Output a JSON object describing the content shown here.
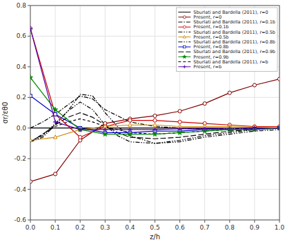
{
  "chart_data": {
    "type": "line",
    "x_label": "z/h",
    "y_label": "σr/εθ0",
    "xlim": [
      0,
      1.0
    ],
    "ylim": [
      -0.6,
      0.8
    ],
    "xticks": [
      {
        "value": 0,
        "label": "0.0"
      },
      0.1,
      0.2,
      0.3,
      0.4,
      0.5,
      0.6,
      0.7,
      0.8,
      0.9,
      {
        "value": 1.0,
        "label": "1.0"
      }
    ],
    "yticks": [
      -0.6,
      -0.4,
      -0.2,
      {
        "value": 0.0,
        "label": "0.0"
      },
      0.2,
      0.4,
      0.6,
      0.8
    ],
    "grid": true,
    "legend": "upper right",
    "series": [
      {
        "name": "Sburlati and Bardella (2011), r=0",
        "color": "#000000",
        "line_style": "solid",
        "x": [
          0.0,
          0.05,
          0.1,
          0.15,
          0.2,
          0.25,
          0.3,
          0.4,
          0.5,
          0.6,
          0.7,
          0.8,
          0.9,
          1.0
        ],
        "values": [
          0.0,
          0.0,
          0.0,
          0.0,
          0.0,
          0.0,
          0.0,
          0.0,
          0.0,
          0.0,
          0.0,
          0.0,
          0.0,
          0.0
        ]
      },
      {
        "name": "Present, r=0",
        "color": "#800000",
        "line_style": "solid",
        "marker": "circle",
        "x": [
          0.0,
          0.1,
          0.2,
          0.3,
          0.4,
          0.5,
          0.6,
          0.7,
          0.8,
          0.9,
          1.0
        ],
        "values": [
          -0.35,
          -0.3,
          -0.08,
          0.03,
          0.06,
          0.08,
          0.11,
          0.16,
          0.23,
          0.28,
          0.32
        ]
      },
      {
        "name": "Sburlati and Bardella (2011), r=0.1b",
        "color": "#000000",
        "line_style": "dashdot",
        "x": [
          0.0,
          0.05,
          0.1,
          0.15,
          0.2,
          0.25,
          0.3,
          0.4,
          0.5,
          0.6,
          0.7,
          0.8,
          0.9,
          1.0
        ],
        "values": [
          0.0,
          0.04,
          0.09,
          0.15,
          0.21,
          0.19,
          0.12,
          0.04,
          0.01,
          0.0,
          -0.005,
          -0.005,
          -0.002,
          0.0
        ]
      },
      {
        "name": "Present, r=0.1b",
        "color": "#cc0000",
        "line_style": "solid",
        "marker": "circle",
        "x": [
          0.0,
          0.1,
          0.2,
          0.3,
          0.4,
          0.5,
          0.6,
          0.7,
          0.8,
          0.9,
          1.0
        ],
        "values": [
          0.65,
          0.09,
          -0.06,
          0.01,
          0.05,
          0.05,
          0.04,
          0.03,
          0.02,
          0.01,
          0.01
        ]
      },
      {
        "name": "Sburlati and Bardella (2011), r=0.5b",
        "color": "#000000",
        "line_style": "dashdotdot",
        "x": [
          0.0,
          0.05,
          0.1,
          0.15,
          0.2,
          0.25,
          0.3,
          0.35,
          0.4,
          0.5,
          0.6,
          0.7,
          0.8,
          0.9,
          1.0
        ],
        "values": [
          -0.09,
          -0.06,
          0.02,
          0.11,
          0.22,
          0.21,
          0.1,
          0.01,
          -0.05,
          -0.1,
          -0.09,
          -0.06,
          -0.04,
          -0.02,
          -0.01
        ]
      },
      {
        "name": "Present, r=0.5b",
        "color": "#cc8800",
        "line_style": "solid",
        "marker": "triangle",
        "x": [
          0.0,
          0.1,
          0.2,
          0.3,
          0.4,
          0.5,
          0.6,
          0.7,
          0.8,
          0.9,
          1.0
        ],
        "values": [
          -0.08,
          -0.06,
          -0.01,
          0.01,
          0.02,
          0.02,
          0.01,
          0.01,
          0.01,
          0.005,
          0.0
        ]
      },
      {
        "name": "Sburlati and Bardella (2011), r=0.8b",
        "color": "#000000",
        "line_style": "dashdotdot",
        "x": [
          0.0,
          0.05,
          0.1,
          0.15,
          0.2,
          0.25,
          0.3,
          0.35,
          0.4,
          0.5,
          0.6,
          0.7,
          0.8,
          0.9,
          1.0
        ],
        "values": [
          -0.09,
          -0.05,
          0.03,
          0.11,
          0.17,
          0.12,
          0.02,
          -0.05,
          -0.09,
          -0.1,
          -0.08,
          -0.05,
          -0.03,
          -0.01,
          0.0
        ]
      },
      {
        "name": "Present, r=0.8b",
        "color": "#0000cc",
        "line_style": "solid",
        "marker": "square",
        "x": [
          0.0,
          0.1,
          0.2,
          0.3,
          0.4,
          0.5,
          0.6,
          0.7,
          0.8,
          0.9,
          1.0
        ],
        "values": [
          0.21,
          0.09,
          0.0,
          -0.03,
          -0.03,
          -0.02,
          -0.02,
          -0.01,
          -0.01,
          -0.005,
          0.0
        ]
      },
      {
        "name": "Sburlati and Bardella (2011), r=0.9b",
        "color": "#000000",
        "line_style": "longdash",
        "x": [
          0.0,
          0.05,
          0.1,
          0.15,
          0.2,
          0.25,
          0.3,
          0.35,
          0.4,
          0.5,
          0.6,
          0.7,
          0.8,
          0.9,
          1.0
        ],
        "values": [
          -0.09,
          -0.04,
          0.02,
          0.07,
          0.1,
          0.07,
          0.02,
          -0.03,
          -0.06,
          -0.07,
          -0.06,
          -0.04,
          -0.02,
          -0.01,
          0.0
        ]
      },
      {
        "name": "Present, r=0.9b",
        "color": "#008800",
        "line_style": "solid",
        "marker": "star",
        "x": [
          0.0,
          0.1,
          0.2,
          0.3,
          0.4,
          0.5,
          0.6,
          0.7,
          0.8,
          0.9,
          1.0
        ],
        "values": [
          0.33,
          0.12,
          -0.01,
          -0.04,
          -0.04,
          -0.04,
          -0.03,
          -0.02,
          -0.01,
          -0.01,
          0.0
        ]
      },
      {
        "name": "Sburlati and Bardella (2011), r=b",
        "color": "#000000",
        "line_style": "dashed",
        "x": [
          0.0,
          0.05,
          0.1,
          0.15,
          0.2,
          0.25,
          0.3,
          0.35,
          0.4,
          0.5,
          0.6,
          0.7,
          0.8,
          0.9,
          1.0
        ],
        "values": [
          -0.09,
          -0.04,
          0.01,
          0.04,
          0.06,
          0.04,
          0.01,
          -0.01,
          -0.03,
          -0.04,
          -0.03,
          -0.02,
          -0.01,
          -0.005,
          0.0
        ]
      },
      {
        "name": "Present, r=b",
        "color": "#5500aa",
        "line_style": "solid",
        "marker": "plus",
        "x": [
          0.0,
          0.1,
          0.2,
          0.3,
          0.4,
          0.5,
          0.6,
          0.7,
          0.8,
          0.9,
          1.0
        ],
        "values": [
          0.65,
          0.04,
          -0.01,
          -0.01,
          -0.01,
          -0.01,
          -0.005,
          -0.005,
          0.0,
          0.0,
          0.0
        ]
      }
    ]
  }
}
